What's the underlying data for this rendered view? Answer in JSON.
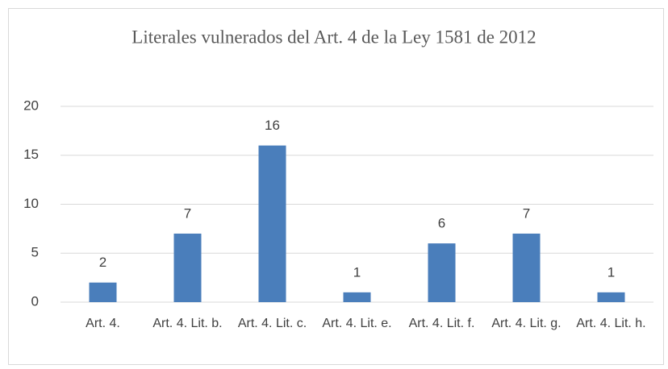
{
  "chart_data": {
    "type": "bar",
    "title": "Literales vulnerados del Art. 4 de la Ley 1581 de 2012",
    "categories": [
      "Art. 4.",
      "Art. 4. Lit. b.",
      "Art. 4. Lit. c.",
      "Art. 4. Lit. e.",
      "Art. 4. Lit. f.",
      "Art. 4. Lit. g.",
      "Art. 4. Lit. h."
    ],
    "values": [
      2,
      7,
      16,
      1,
      6,
      7,
      1
    ],
    "color": "#4a7ebb",
    "ylim": [
      0,
      20
    ],
    "yticks": [
      0,
      5,
      10,
      15,
      20
    ],
    "grid": true
  }
}
